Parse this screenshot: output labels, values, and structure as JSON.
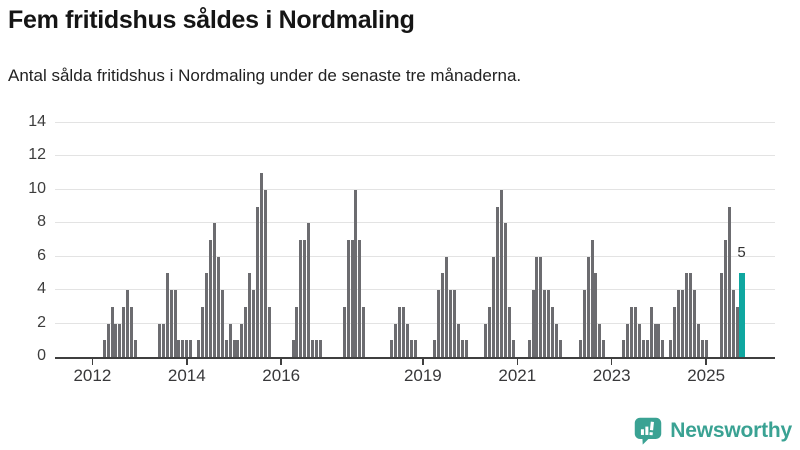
{
  "header": {
    "title": "Fem fritidshus såldes i Nordmaling",
    "subtitle": "Antal sålda fritidshus i Nordmaling under de senaste tre månaderna."
  },
  "chart_data": {
    "type": "bar",
    "title": "Fem fritidshus såldes i Nordmaling",
    "subtitle": "Antal sålda fritidshus i Nordmaling under de senaste tre månaderna.",
    "ylabel": "",
    "xlabel": "",
    "ylim": [
      0,
      14
    ],
    "y_ticks": [
      0,
      2,
      4,
      6,
      8,
      10,
      12,
      14
    ],
    "grid": true,
    "months_start": "2011-04",
    "months_end": "2025-10",
    "x_slots": 183,
    "values": [
      0,
      0,
      0,
      0,
      0,
      0,
      0,
      0,
      0,
      0,
      0,
      0,
      1,
      2,
      3,
      2,
      2,
      3,
      4,
      3,
      1,
      0,
      0,
      0,
      0,
      0,
      2,
      2,
      5,
      4,
      4,
      1,
      1,
      1,
      1,
      0,
      1,
      3,
      5,
      7,
      8,
      6,
      4,
      1,
      2,
      1,
      1,
      2,
      3,
      5,
      4,
      9,
      11,
      10,
      3,
      0,
      0,
      0,
      0,
      0,
      1,
      3,
      7,
      7,
      8,
      1,
      1,
      1,
      0,
      0,
      0,
      0,
      0,
      3,
      7,
      7,
      10,
      7,
      3,
      0,
      0,
      0,
      0,
      0,
      0,
      1,
      2,
      3,
      3,
      2,
      1,
      1,
      0,
      0,
      0,
      0,
      1,
      4,
      5,
      6,
      4,
      4,
      2,
      1,
      1,
      0,
      0,
      0,
      0,
      2,
      3,
      6,
      9,
      10,
      8,
      3,
      1,
      0,
      0,
      0,
      1,
      4,
      6,
      6,
      4,
      4,
      3,
      2,
      1,
      0,
      0,
      0,
      0,
      1,
      4,
      6,
      7,
      5,
      2,
      1,
      0,
      0,
      0,
      0,
      1,
      2,
      3,
      3,
      2,
      1,
      1,
      3,
      2,
      2,
      1,
      0,
      1,
      3,
      4,
      4,
      5,
      5,
      4,
      2,
      1,
      1,
      0,
      0,
      0,
      5,
      7,
      9,
      4,
      3,
      5
    ],
    "x_ticks": [
      {
        "label": "2012",
        "month_index": 9
      },
      {
        "label": "2014",
        "month_index": 33
      },
      {
        "label": "2016",
        "month_index": 57
      },
      {
        "label": "2019",
        "month_index": 93
      },
      {
        "label": "2021",
        "month_index": 117
      },
      {
        "label": "2023",
        "month_index": 141
      },
      {
        "label": "2025",
        "month_index": 165
      }
    ],
    "highlight": {
      "index": 174,
      "value": 5,
      "label": "5"
    },
    "bar_color": "#6c6c70",
    "highlight_color": "#0fa7a0",
    "grid_color": "#e3e3e3",
    "axis_color": "#3f3f3f"
  },
  "footer": {
    "brand": "Newsworthy",
    "brand_color": "#3aa293"
  }
}
